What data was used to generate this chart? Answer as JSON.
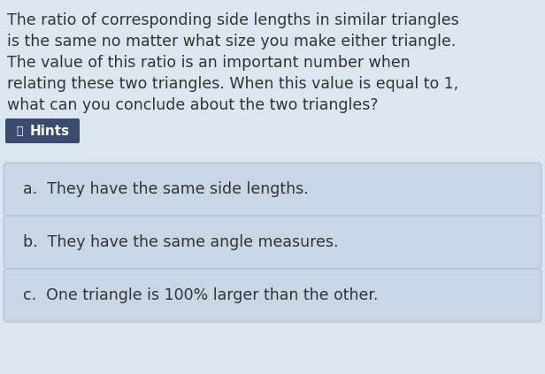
{
  "background_color": "#dce6f0",
  "question_lines": [
    "The ratio of corresponding side lengths in similar triangles",
    "is the same no matter what size you make either triangle.",
    "The value of this ratio is an important number when",
    "relating these two triangles. When this value is equal to 1,",
    "what can you conclude about the two triangles?"
  ],
  "hints_button_bg": "#3a4a70",
  "hints_button_text_color": "#ffffff",
  "hints_label": "Hints",
  "answer_box_bg": "#c8d6e5",
  "answer_box_border_color": "#b0c2d6",
  "answers": [
    "a.  They have the same side lengths.",
    "b.  They have the same angle measures.",
    "c.  One triangle is 100% larger than the other."
  ],
  "question_font_size": 12.5,
  "answer_font_size": 12.5,
  "text_color": "#333333",
  "fig_width": 6.16,
  "fig_height": 4.23,
  "dpi": 100
}
